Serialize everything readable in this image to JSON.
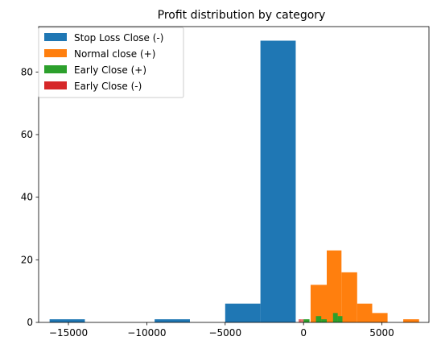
{
  "chart_data": {
    "type": "histogram",
    "title": "Profit distribution by category",
    "xlabel": "",
    "ylabel": "",
    "xlim": [
      -16900,
      8000
    ],
    "ylim": [
      0,
      94.5
    ],
    "x_ticks": [
      -15000,
      -10000,
      -5000,
      0,
      5000
    ],
    "x_tick_labels": [
      "−15000",
      "−10000",
      "−5000",
      "0",
      "5000"
    ],
    "y_ticks": [
      0,
      20,
      40,
      60,
      80
    ],
    "y_tick_labels": [
      "0",
      "20",
      "40",
      "60",
      "80"
    ],
    "grid": false,
    "legend_position": "top-left",
    "series": [
      {
        "name": "Stop Loss Close (-)",
        "color": "#1f77b4",
        "bins": [
          {
            "x0": -16200,
            "x1": -13950,
            "count": 1
          },
          {
            "x0": -9500,
            "x1": -7250,
            "count": 1
          },
          {
            "x0": -5000,
            "x1": -2750,
            "count": 6
          },
          {
            "x0": -2750,
            "x1": -500,
            "count": 90
          }
        ]
      },
      {
        "name": "Normal close (+)",
        "color": "#ff7f0e",
        "bins": [
          {
            "x0": 450,
            "x1": 1480,
            "count": 12
          },
          {
            "x0": 1480,
            "x1": 2420,
            "count": 23
          },
          {
            "x0": 2420,
            "x1": 3420,
            "count": 16
          },
          {
            "x0": 3420,
            "x1": 4380,
            "count": 6
          },
          {
            "x0": 4380,
            "x1": 5360,
            "count": 3
          },
          {
            "x0": 6360,
            "x1": 7370,
            "count": 1
          }
        ]
      },
      {
        "name": "Early Close (+)",
        "color": "#2ca02c",
        "bins": [
          {
            "x0": 0,
            "x1": 380,
            "count": 1
          },
          {
            "x0": 790,
            "x1": 1130,
            "count": 2
          },
          {
            "x0": 1130,
            "x1": 1480,
            "count": 1
          },
          {
            "x0": 1880,
            "x1": 2180,
            "count": 3
          },
          {
            "x0": 2180,
            "x1": 2480,
            "count": 2
          }
        ]
      },
      {
        "name": "Early Close (-)",
        "color": "#d62728",
        "bins": [
          {
            "x0": -300,
            "x1": -230,
            "count": 1
          },
          {
            "x0": -200,
            "x1": -130,
            "count": 1
          },
          {
            "x0": -90,
            "x1": -20,
            "count": 1
          }
        ]
      }
    ]
  }
}
